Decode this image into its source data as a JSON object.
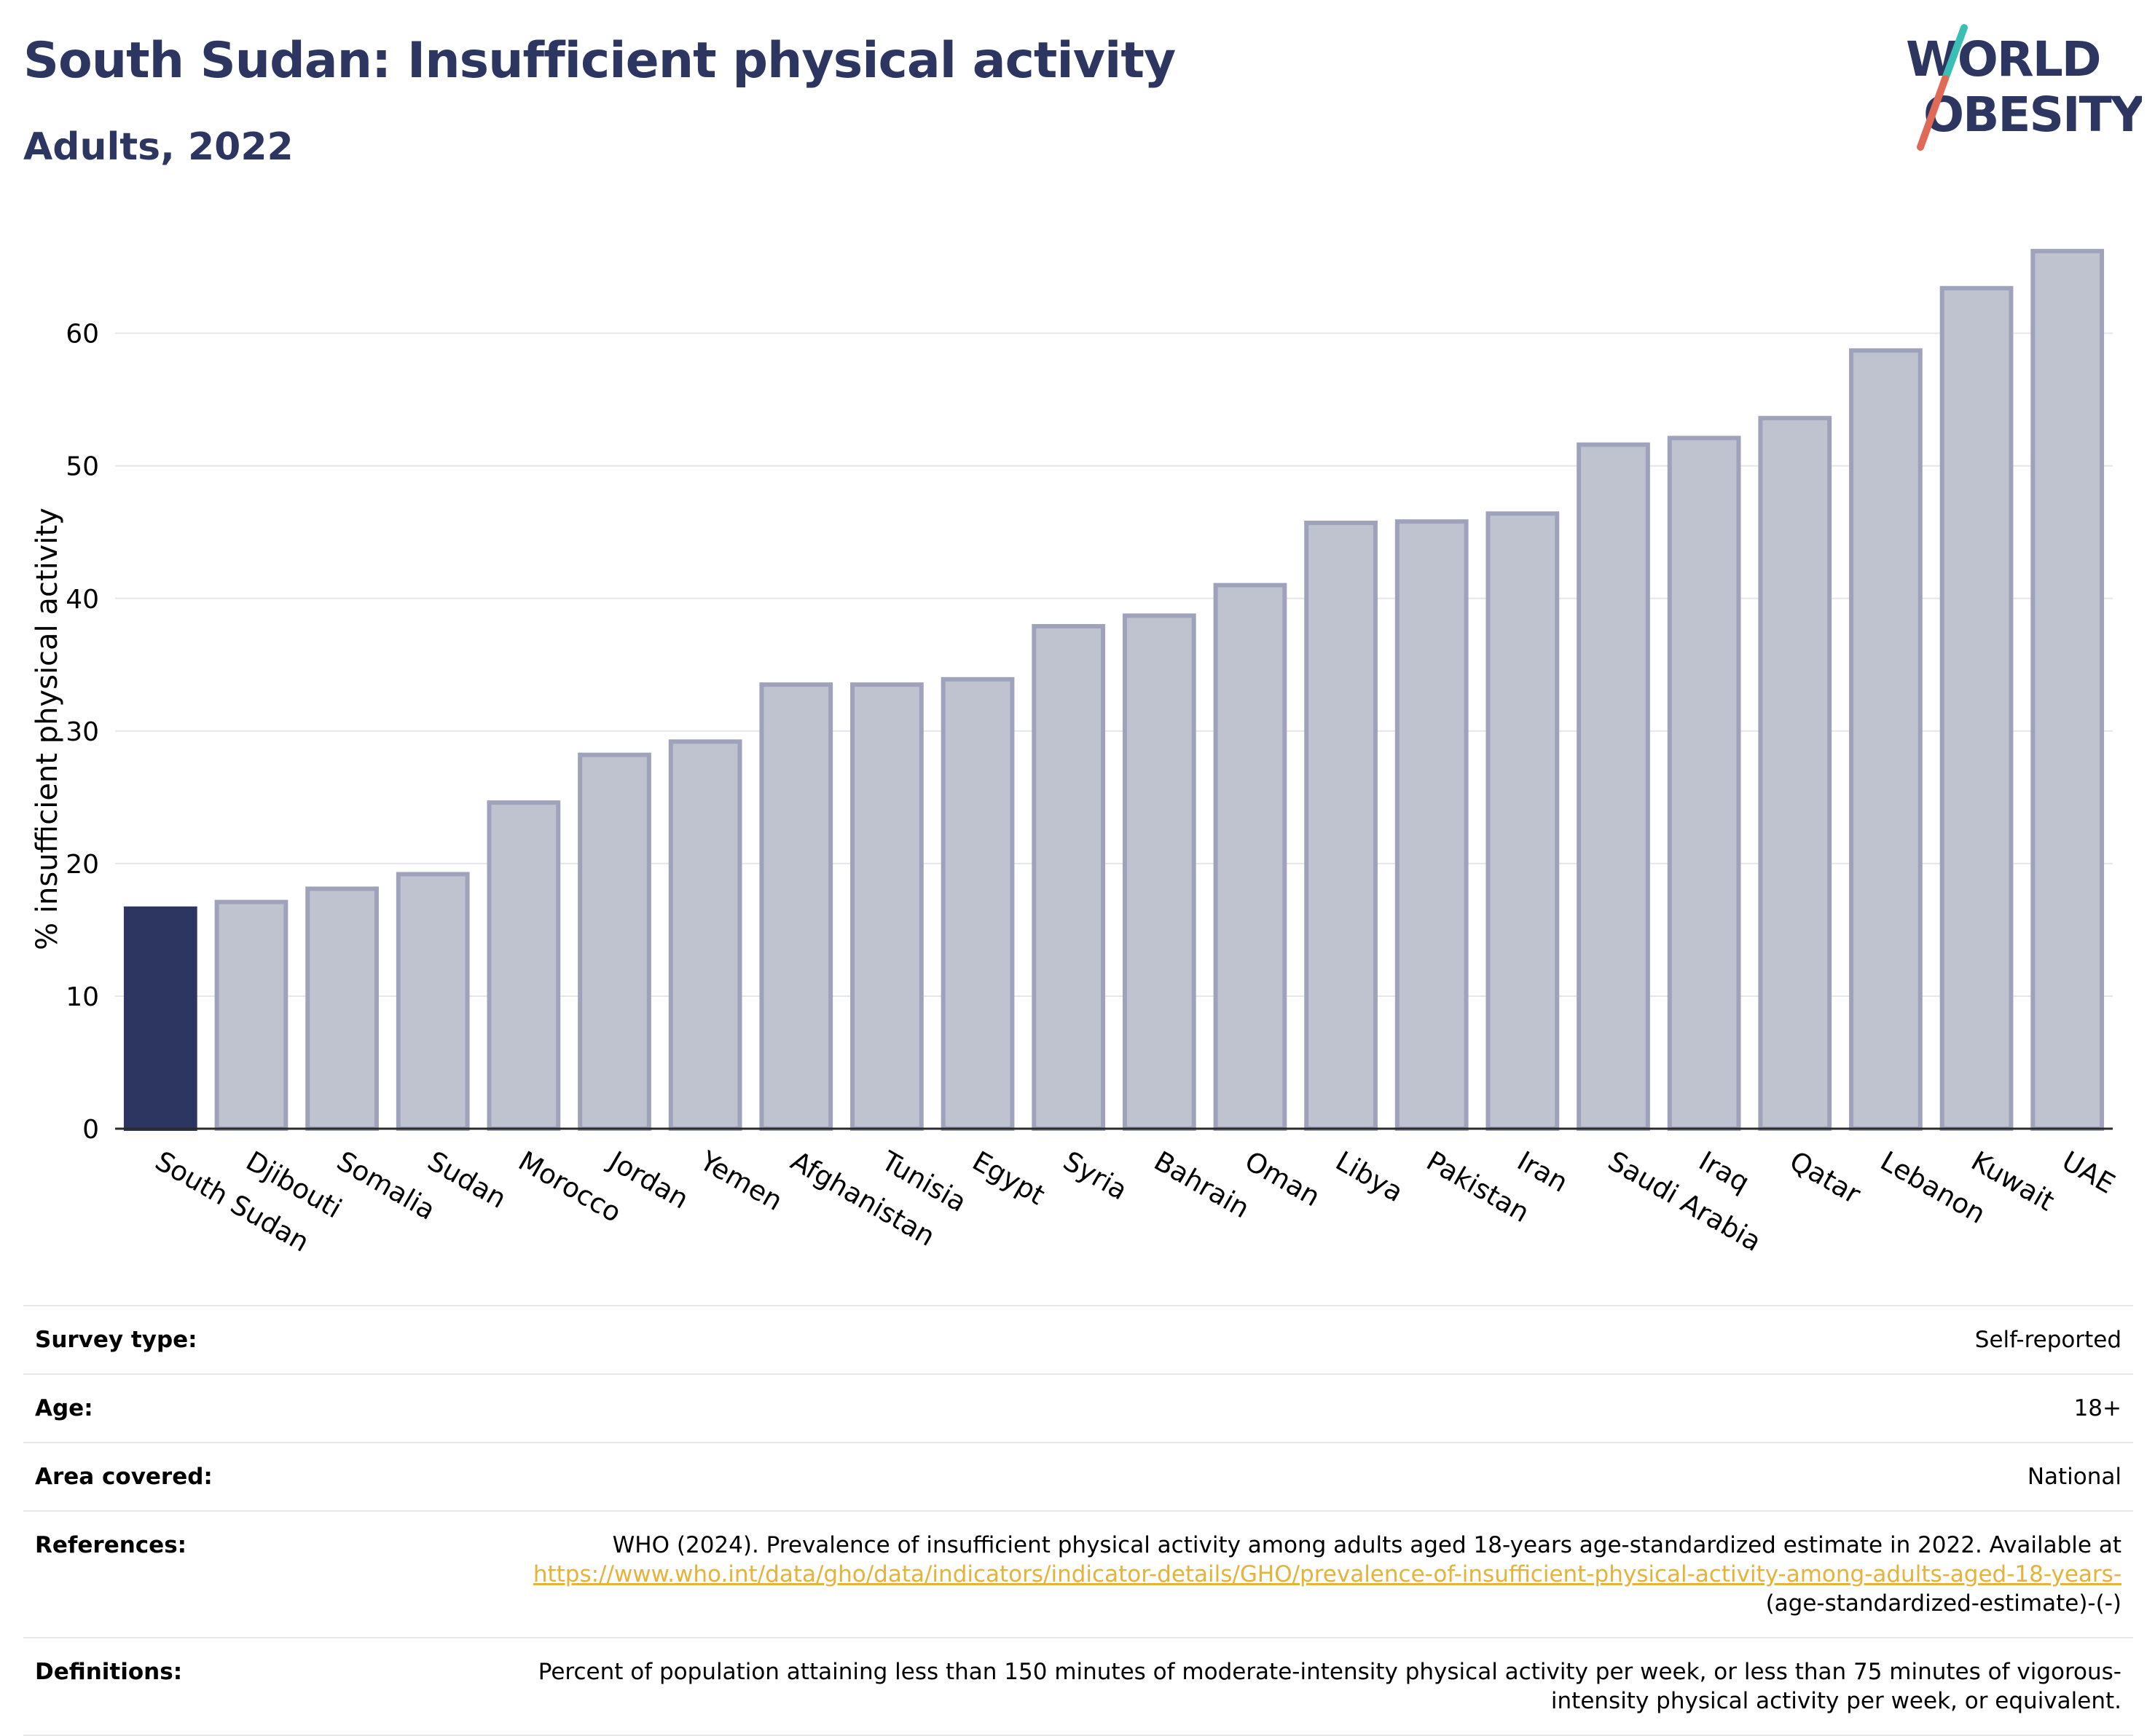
{
  "header": {
    "title": "South Sudan: Insufficient physical activity",
    "subtitle": "Adults, 2022"
  },
  "logo": {
    "line1": "WORLD",
    "line2": "OBESITY"
  },
  "colors": {
    "highlight": "#2d3561",
    "bar": "#bfc2cf",
    "bar_edge": "#9ea3bb",
    "link": "#e5b23a"
  },
  "chart_data": {
    "type": "bar",
    "ylabel": "% insufficient physical activity",
    "ylim": [
      0,
      68
    ],
    "yticks": [
      0,
      10,
      20,
      30,
      40,
      50,
      60
    ],
    "grid": true,
    "highlight": "South Sudan",
    "categories": [
      "South Sudan",
      "Djibouti",
      "Somalia",
      "Sudan",
      "Morocco",
      "Jordan",
      "Yemen",
      "Afghanistan",
      "Tunisia",
      "Egypt",
      "Syria",
      "Bahrain",
      "Oman",
      "Libya",
      "Pakistan",
      "Iran",
      "Saudi Arabia",
      "Iraq",
      "Qatar",
      "Lebanon",
      "Kuwait",
      "UAE"
    ],
    "values": [
      16.6,
      17.1,
      18.1,
      19.2,
      24.6,
      28.2,
      29.2,
      33.5,
      33.5,
      33.9,
      37.9,
      38.7,
      41.0,
      45.7,
      45.8,
      46.4,
      51.6,
      52.1,
      53.6,
      58.7,
      63.4,
      66.2
    ]
  },
  "info": {
    "survey_type": {
      "label": "Survey type:",
      "value": "Self-reported"
    },
    "age": {
      "label": "Age:",
      "value": "18+"
    },
    "area": {
      "label": "Area covered:",
      "value": "National"
    },
    "references": {
      "label": "References:",
      "text": "WHO (2024). Prevalence of insufficient physical activity among adults aged 18-years age-standardized estimate in 2022. Available at ",
      "link": "https://www.who.int/data/gho/data/indicators/indicator-details/GHO/prevalence-of-insufficient-physical-activity-among-adults-aged-18-years-",
      "suffix": "(age-standardized-estimate)-(-)"
    },
    "definitions": {
      "label": "Definitions:",
      "value": "Percent of population attaining less than 150 minutes of moderate-intensity physical activity per week, or less than 75 minutes of vigorous-intensity physical activity per week, or equivalent."
    }
  }
}
